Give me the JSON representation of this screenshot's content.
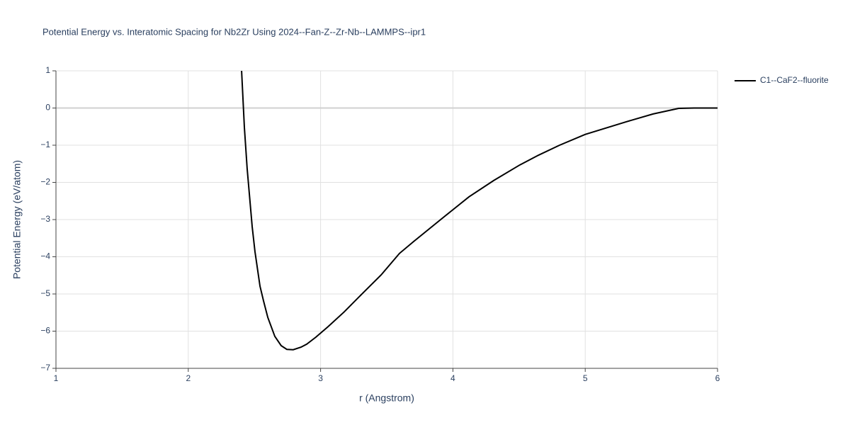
{
  "chart_data": {
    "type": "line",
    "title": "Potential Energy vs. Interatomic Spacing for Nb2Zr Using 2024--Fan-Z--Zr-Nb--LAMMPS--ipr1",
    "x_label": "r (Angstrom)",
    "y_label": "Potential Energy (eV/atom)",
    "x": [
      2.403,
      2.424,
      2.445,
      2.483,
      2.504,
      2.542,
      2.569,
      2.601,
      2.654,
      2.702,
      2.745,
      2.793,
      2.852,
      2.895,
      2.965,
      3.056,
      3.179,
      3.307,
      3.457,
      3.596,
      3.703,
      3.928,
      4.121,
      4.308,
      4.506,
      4.646,
      4.806,
      4.999,
      5.31,
      5.513,
      5.706,
      5.823,
      6.0
    ],
    "series": [
      {
        "name": "C1--CaF2--fluorite",
        "color": "#000000",
        "values": [
          1.0,
          -0.52,
          -1.63,
          -3.19,
          -3.86,
          -4.79,
          -5.19,
          -5.63,
          -6.14,
          -6.39,
          -6.49,
          -6.5,
          -6.43,
          -6.35,
          -6.16,
          -5.88,
          -5.48,
          -5.02,
          -4.49,
          -3.91,
          -3.59,
          -2.94,
          -2.39,
          -1.95,
          -1.53,
          -1.27,
          -1.0,
          -0.71,
          -0.37,
          -0.16,
          -0.01,
          0.0,
          0.0
        ]
      }
    ],
    "xlim": [
      1,
      6
    ],
    "ylim": [
      -7,
      1
    ],
    "xticks": [
      1,
      2,
      3,
      4,
      5,
      6
    ],
    "yticks": [
      1,
      0,
      {
        "value": -1,
        "label": "−1"
      },
      {
        "value": -2,
        "label": "−2"
      },
      {
        "value": -3,
        "label": "−3"
      },
      {
        "value": -4,
        "label": "−4"
      },
      {
        "value": -5,
        "label": "−5"
      },
      {
        "value": -6,
        "label": "−6"
      },
      {
        "value": -7,
        "label": "−7"
      }
    ],
    "grid": true,
    "zeroline": true,
    "legend_position": "right"
  }
}
